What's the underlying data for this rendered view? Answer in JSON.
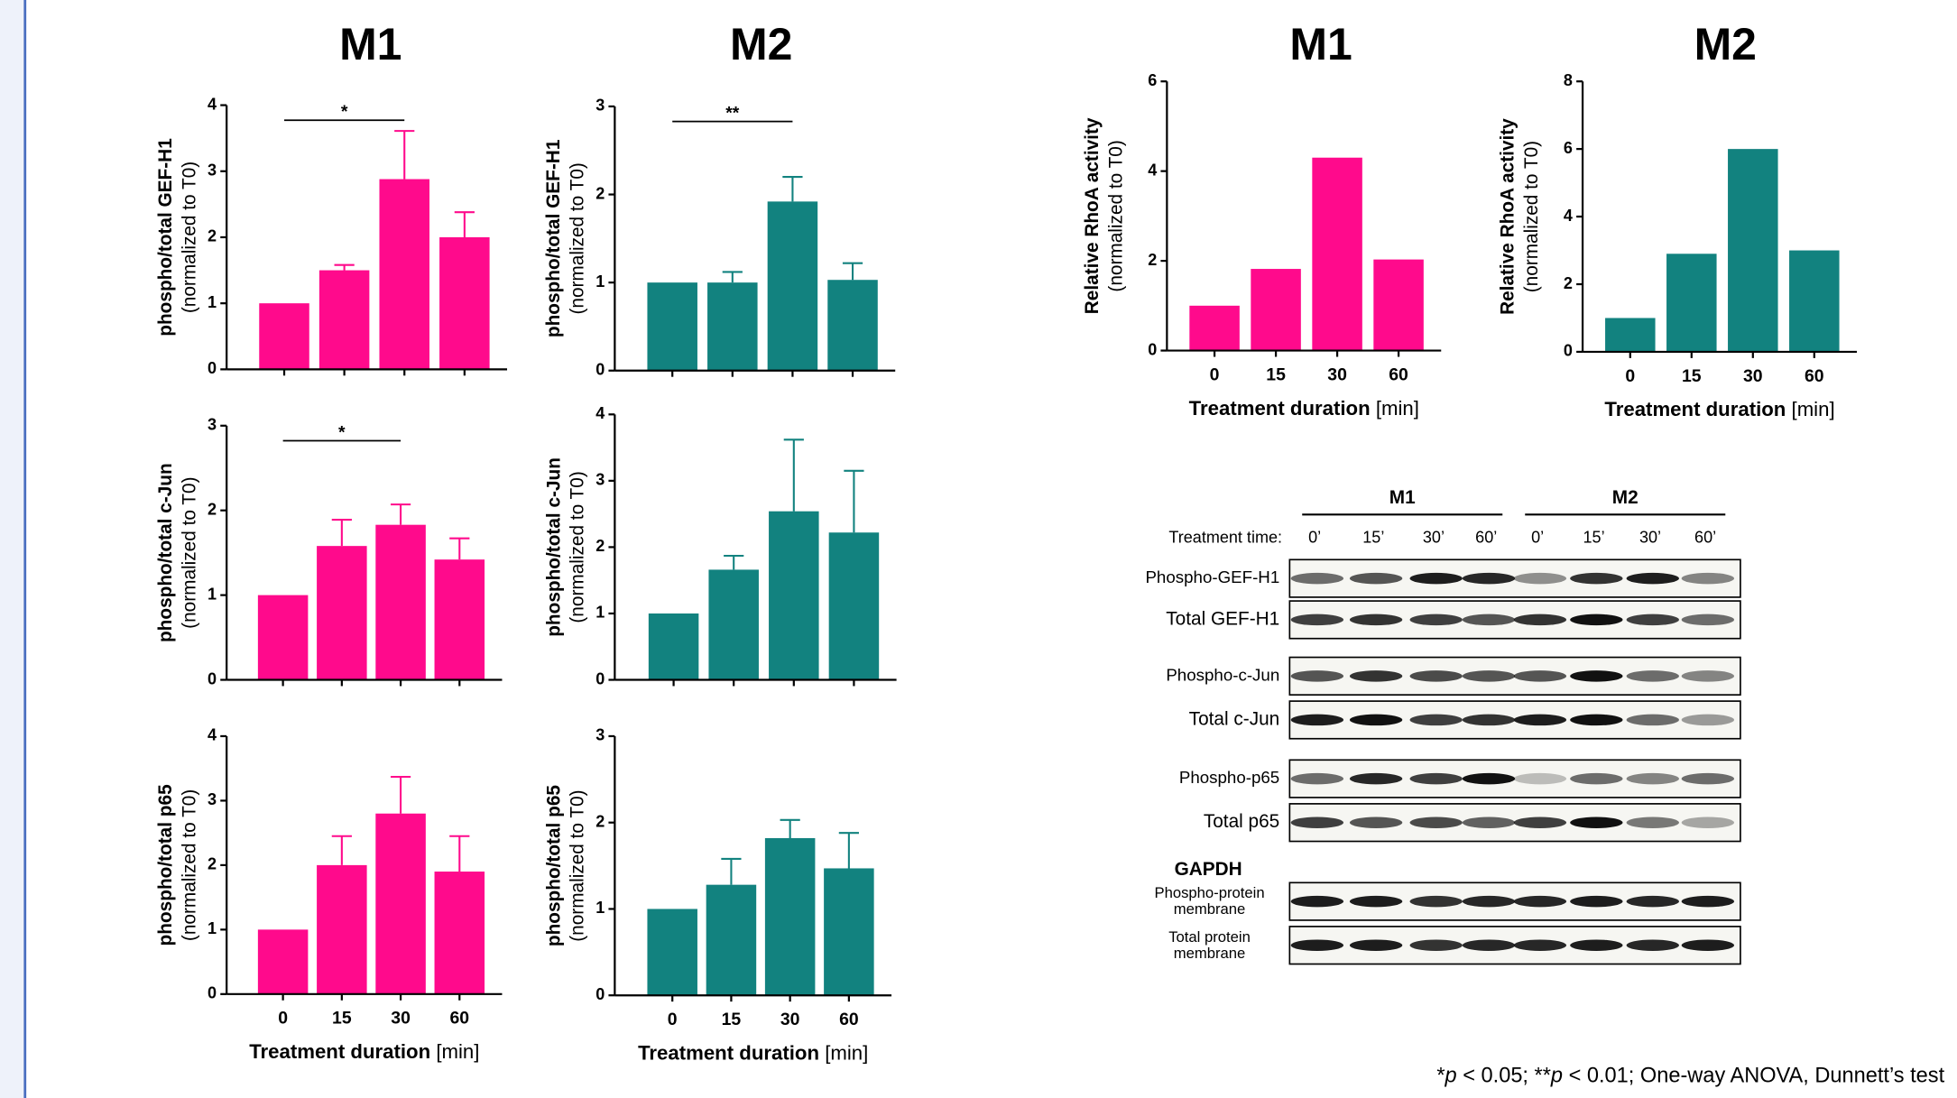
{
  "chart_data": [
    {
      "type": "bar",
      "title": "M1",
      "ylabel": [
        "phospho/total GEF-H1",
        "(normalized to T0)"
      ],
      "categories": [
        null,
        null,
        null,
        null
      ],
      "values": [
        1.0,
        1.5,
        2.88,
        2.0
      ],
      "errors": [
        null,
        0.08,
        0.73,
        0.38
      ],
      "color": "#ff0a8c",
      "ylim": [
        0,
        4
      ],
      "yticks": [
        0,
        1,
        2,
        3,
        4
      ],
      "annotations": [
        {
          "text": "*",
          "from": 0,
          "to": 2
        }
      ]
    },
    {
      "type": "bar",
      "title": "M2",
      "ylabel": [
        "phospho/total GEF-H1",
        "(normalized to T0)"
      ],
      "categories": [
        null,
        null,
        null,
        null
      ],
      "values": [
        1.0,
        1.0,
        1.92,
        1.03
      ],
      "errors": [
        null,
        0.12,
        0.28,
        0.19
      ],
      "color": "#12827f",
      "ylim": [
        0,
        3
      ],
      "yticks": [
        0,
        1,
        2,
        3
      ],
      "annotations": [
        {
          "text": "**",
          "from": 0,
          "to": 2
        }
      ]
    },
    {
      "type": "bar",
      "ylabel": [
        "phospho/total c-Jun",
        "(normalized to T0)"
      ],
      "categories": [
        null,
        null,
        null,
        null
      ],
      "values": [
        1.0,
        1.58,
        1.83,
        1.42
      ],
      "errors": [
        null,
        0.31,
        0.24,
        0.25
      ],
      "color": "#ff0a8c",
      "ylim": [
        0,
        3
      ],
      "yticks": [
        0,
        1,
        2,
        3
      ],
      "annotations": [
        {
          "text": "*",
          "from": 0,
          "to": 2
        }
      ]
    },
    {
      "type": "bar",
      "ylabel": [
        "phospho/total c-Jun",
        "(normalized to T0)"
      ],
      "categories": [
        null,
        null,
        null,
        null
      ],
      "values": [
        1.0,
        1.66,
        2.54,
        2.22
      ],
      "errors": [
        null,
        0.21,
        1.08,
        0.93
      ],
      "color": "#12827f",
      "ylim": [
        0,
        4
      ],
      "yticks": [
        0,
        1,
        2,
        3,
        4
      ]
    },
    {
      "type": "bar",
      "ylabel": [
        "phospho/total p65",
        "(normalized to T0)"
      ],
      "categories": [
        "0",
        "15",
        "30",
        "60"
      ],
      "xlabel": "Treatment duration",
      "xlabel_unit": "[min]",
      "values": [
        1.0,
        2.0,
        2.8,
        1.9
      ],
      "errors": [
        null,
        0.45,
        0.57,
        0.55
      ],
      "color": "#ff0a8c",
      "ylim": [
        0,
        4
      ],
      "yticks": [
        0,
        1,
        2,
        3,
        4
      ]
    },
    {
      "type": "bar",
      "ylabel": [
        "phospho/total p65",
        "(normalized to T0)"
      ],
      "categories": [
        "0",
        "15",
        "30",
        "60"
      ],
      "xlabel": "Treatment duration",
      "xlabel_unit": "[min]",
      "values": [
        1.0,
        1.28,
        1.82,
        1.47
      ],
      "errors": [
        null,
        0.3,
        0.21,
        0.41
      ],
      "color": "#12827f",
      "ylim": [
        0,
        3
      ],
      "yticks": [
        0,
        1,
        2,
        3
      ]
    },
    {
      "type": "bar",
      "title": "M1",
      "ylabel": [
        "Relative RhoA activity",
        "(normalized to T0)"
      ],
      "categories": [
        "0",
        "15",
        "30",
        "60"
      ],
      "xlabel": "Treatment duration",
      "xlabel_unit": "[min]",
      "values": [
        1.0,
        1.82,
        4.3,
        2.03
      ],
      "color": "#ff0a8c",
      "ylim": [
        0,
        6
      ],
      "yticks": [
        0,
        2,
        4,
        6
      ]
    },
    {
      "type": "bar",
      "title": "M2",
      "ylabel": [
        "Relative RhoA activity",
        "(normalized to T0)"
      ],
      "categories": [
        "0",
        "15",
        "30",
        "60"
      ],
      "xlabel": "Treatment duration",
      "xlabel_unit": "[min]",
      "values": [
        1.0,
        2.9,
        6.0,
        3.0
      ],
      "color": "#12827f",
      "ylim": [
        0,
        8
      ],
      "yticks": [
        0,
        2,
        4,
        6,
        8
      ]
    }
  ],
  "blot": {
    "groups": [
      "M1",
      "M2"
    ],
    "time_label": "Treatment time:",
    "times": [
      "0’",
      "15’",
      "30’",
      "60’",
      "0’",
      "15’",
      "30’",
      "60’"
    ],
    "rows": [
      "Phospho-GEF-H1",
      "Total GEF-H1",
      "Phospho-c-Jun",
      "Total c-Jun",
      "Phospho-p65",
      "Total p65"
    ],
    "gapdh_title": "GAPDH",
    "gapdh_rows": [
      [
        "Phospho-protein",
        "membrane"
      ],
      [
        "Total protein",
        "membrane"
      ]
    ]
  },
  "footnote": [
    "*",
    "p",
    " < 0.05; **",
    "p",
    " < 0.01; One-way ANOVA, Dunnett’s test"
  ]
}
